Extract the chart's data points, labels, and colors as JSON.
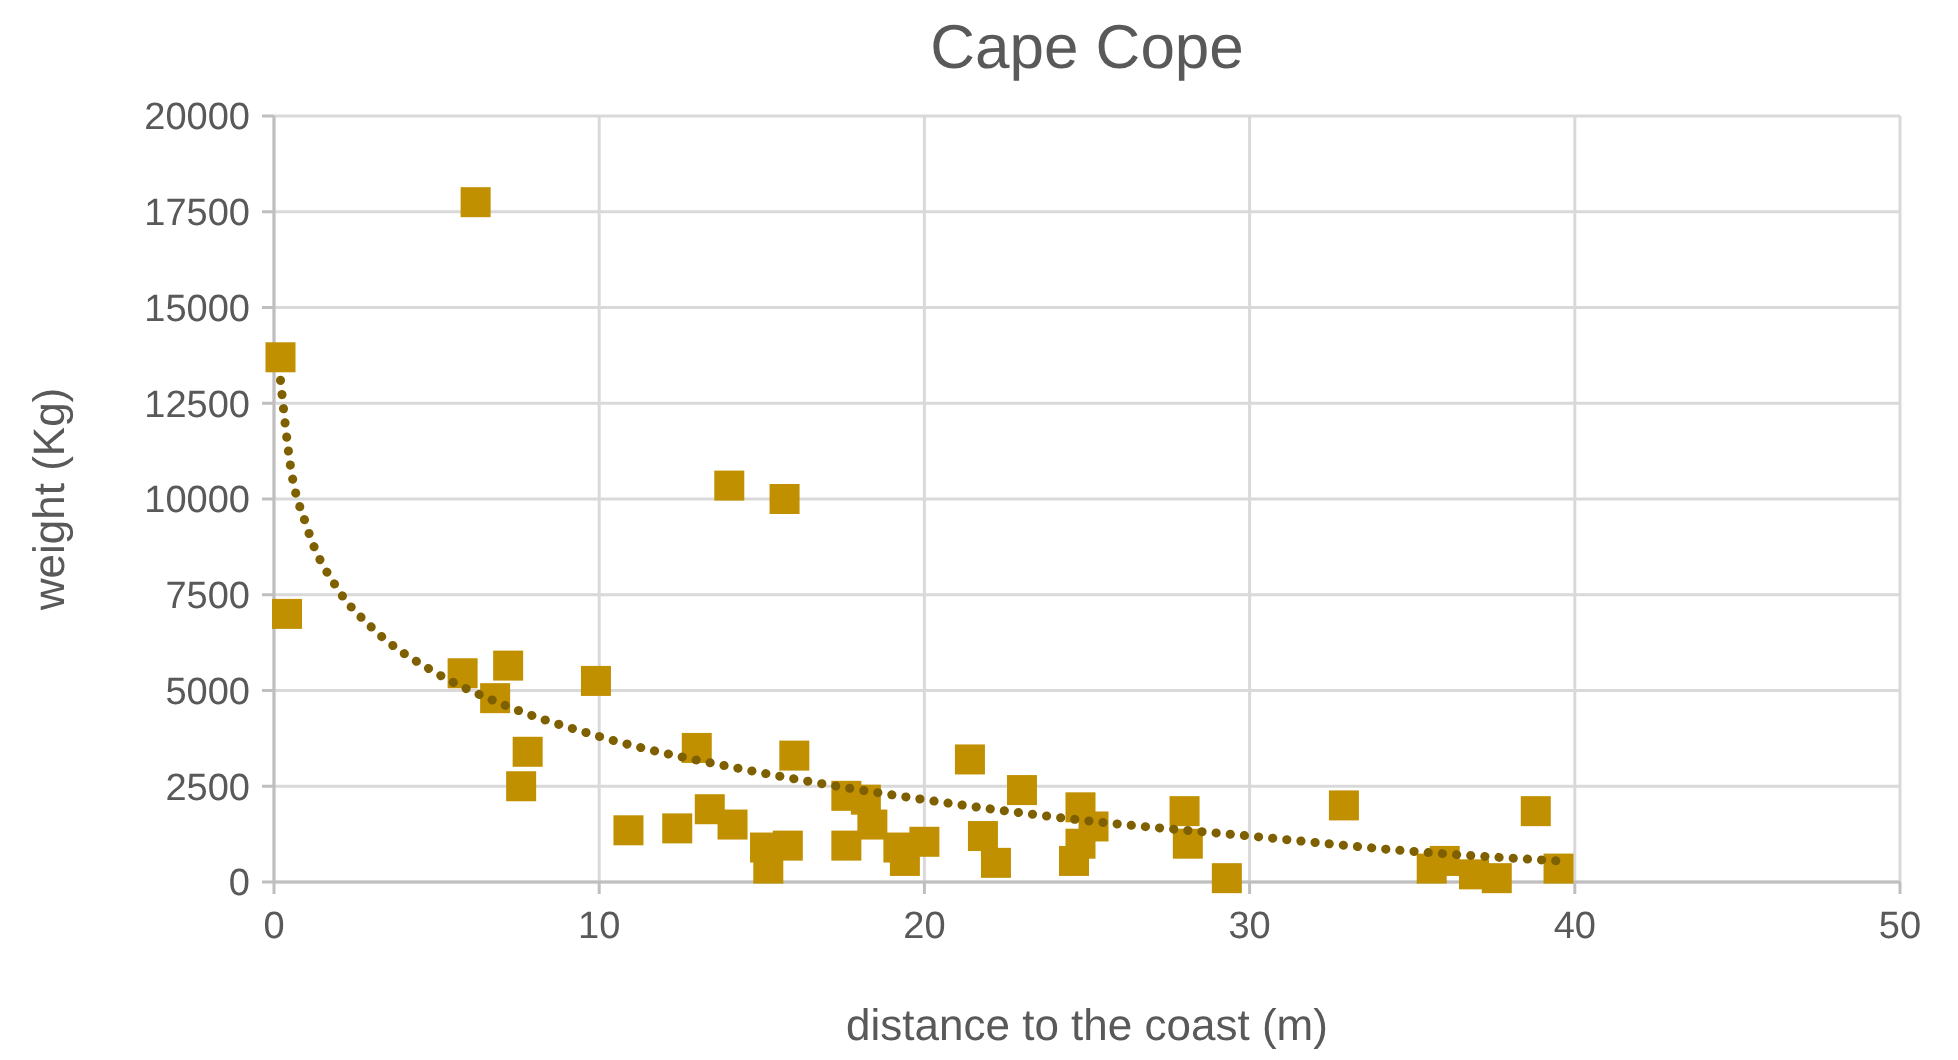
{
  "chart_data": {
    "type": "scatter",
    "title": "Cape Cope",
    "xlabel": "distance to the coast (m)",
    "ylabel": "weight (Kg)",
    "xlim": [
      0,
      50
    ],
    "xticks": [
      0,
      10,
      20,
      30,
      40,
      50
    ],
    "ylim": [
      0,
      20000
    ],
    "yticks": [
      0,
      2500,
      5000,
      7500,
      10000,
      12500,
      15000,
      17500,
      20000
    ],
    "grid": true,
    "series": [
      {
        "color": "#c09000",
        "marker": "square",
        "x": [
          0.2,
          0.4,
          6.2,
          5.8,
          7.2,
          6.8,
          7.8,
          7.6,
          9.9,
          10.9,
          12.4,
          13.0,
          13.4,
          14.0,
          14.1,
          15.1,
          15.2,
          15.7,
          15.8,
          16.0,
          17.6,
          17.6,
          18.2,
          18.4,
          19.2,
          19.4,
          20.0,
          21.4,
          21.8,
          22.2,
          23.0,
          24.6,
          24.8,
          24.8,
          25.2,
          28.0,
          28.1,
          29.3,
          32.9,
          35.6,
          36.0,
          36.9,
          37.6,
          38.8,
          39.5
        ],
        "values": [
          13700,
          7000,
          17750,
          5450,
          5650,
          4800,
          3400,
          2500,
          5250,
          1350,
          1400,
          3500,
          1900,
          10350,
          1500,
          900,
          350,
          10000,
          950,
          3300,
          950,
          2250,
          2150,
          1500,
          900,
          550,
          1050,
          3200,
          1200,
          500,
          2400,
          550,
          1950,
          1000,
          1450,
          1850,
          1000,
          100,
          2000,
          350,
          550,
          200,
          100,
          1850,
          350
        ]
      },
      {
        "type": "line",
        "color": "#7f6000",
        "line_style": "dotted",
        "marker": "none",
        "x": [
          0.2,
          0.5,
          1,
          2,
          3,
          5,
          7,
          10,
          15,
          20,
          25,
          30,
          35,
          39.5
        ],
        "values": [
          13100,
          10900,
          9300,
          7600,
          6650,
          5450,
          4650,
          3800,
          2850,
          2150,
          1600,
          1200,
          800,
          550
        ]
      }
    ]
  }
}
